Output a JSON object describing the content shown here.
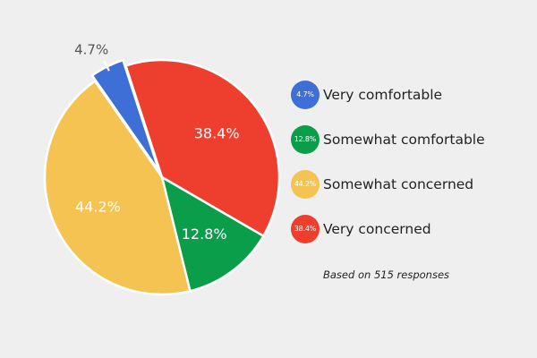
{
  "chart_data": {
    "type": "pie",
    "start_angle_deg": -18,
    "slices": [
      {
        "label": "Very concerned",
        "value": 38.4,
        "text": "38.4%",
        "small_text": "38.4%",
        "color": "#ee3e2e"
      },
      {
        "label": "Somewhat comfortable",
        "value": 12.8,
        "text": "12.8%",
        "small_text": "12.8%",
        "color": "#0a9e4a"
      },
      {
        "label": "Somewhat concerned",
        "value": 44.2,
        "text": "44.2%",
        "small_text": "44.2%",
        "color": "#f4c351"
      },
      {
        "label": "Very comfortable",
        "value": 4.7,
        "text": "4.7%",
        "small_text": "4.7%",
        "color": "#3d6fd6"
      }
    ],
    "legend_order": [
      "Very comfortable",
      "Somewhat comfortable",
      "Somewhat concerned",
      "Very concerned"
    ],
    "legend_placement": "right",
    "note": "Based on 515 responses"
  }
}
